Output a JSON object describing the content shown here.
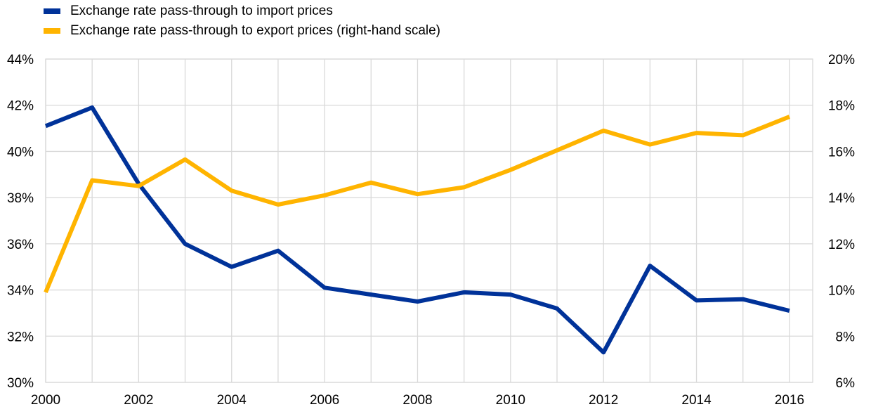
{
  "chart_data": {
    "type": "line",
    "title": "",
    "xlabel": "",
    "ylabel": "",
    "x": [
      2000,
      2001,
      2002,
      2003,
      2004,
      2005,
      2006,
      2007,
      2008,
      2009,
      2010,
      2011,
      2012,
      2013,
      2014,
      2015,
      2016
    ],
    "x_tick_labels": [
      "2000",
      "2002",
      "2004",
      "2006",
      "2008",
      "2010",
      "2012",
      "2014",
      "2016"
    ],
    "x_tick_values": [
      2000,
      2002,
      2004,
      2006,
      2008,
      2010,
      2012,
      2014,
      2016
    ],
    "xlim": [
      2000,
      2016.5
    ],
    "y_left": {
      "ylim": [
        30,
        44
      ],
      "ticks": [
        30,
        32,
        34,
        36,
        38,
        40,
        42,
        44
      ],
      "tick_labels": [
        "30%",
        "32%",
        "34%",
        "36%",
        "38%",
        "40%",
        "42%",
        "44%"
      ]
    },
    "y_right": {
      "ylim": [
        6,
        20
      ],
      "ticks": [
        6,
        8,
        10,
        12,
        14,
        16,
        18,
        20
      ],
      "tick_labels": [
        "6%",
        "8%",
        "10%",
        "12%",
        "14%",
        "16%",
        "18%",
        "20%"
      ]
    },
    "grid": "vertical-and-horizontal",
    "legend_position": "top-left",
    "series": [
      {
        "name": "Exchange rate pass-through to import prices",
        "axis": "left",
        "color": "#003299",
        "values": [
          41.1,
          41.9,
          38.6,
          36.0,
          35.0,
          35.7,
          34.1,
          33.8,
          33.5,
          33.9,
          33.8,
          33.2,
          31.3,
          35.05,
          33.55,
          33.6,
          33.1
        ]
      },
      {
        "name": "Exchange rate pass-through to export prices (right-hand scale)",
        "axis": "right",
        "color": "#FFB400",
        "values": [
          9.9,
          14.75,
          14.5,
          15.65,
          14.3,
          13.7,
          14.1,
          14.65,
          14.15,
          14.45,
          15.2,
          16.05,
          16.9,
          16.3,
          16.8,
          16.7,
          17.5
        ]
      }
    ]
  }
}
